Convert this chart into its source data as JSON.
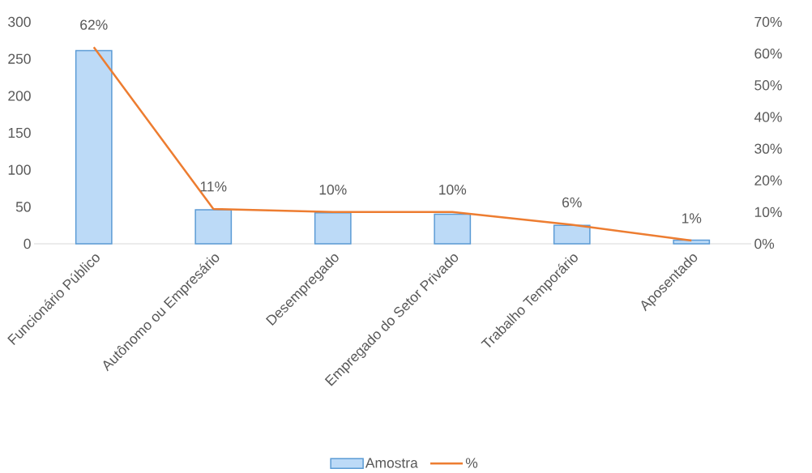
{
  "chart_data": {
    "type": "bar",
    "categories": [
      "Funcionário Público",
      "Autônomo ou Empresário",
      "Desempregado",
      "Empregado do Setor Privado",
      "Trabalho Temporário",
      "Aposentado"
    ],
    "series": [
      {
        "name": "Amostra",
        "color": "#bcdaf7",
        "values": [
          261,
          46,
          42,
          40,
          25,
          5
        ]
      },
      {
        "name": "%",
        "type": "line",
        "axis": "y2",
        "color": "#ed7d31",
        "values": [
          62,
          11,
          10,
          10,
          6,
          1
        ],
        "value_labels": [
          "62%",
          "11%",
          "10%",
          "10%",
          "6%",
          "1%"
        ]
      }
    ],
    "ylim": [
      0,
      300
    ],
    "yticks": [
      0,
      50,
      100,
      150,
      200,
      250,
      300
    ],
    "y2lim": [
      0,
      70
    ],
    "y2ticks": [
      {
        "value": 0,
        "label": "0%"
      },
      {
        "value": 10,
        "label": "10%"
      },
      {
        "value": 20,
        "label": "20%"
      },
      {
        "value": 30,
        "label": "30%"
      },
      {
        "value": 40,
        "label": "40%"
      },
      {
        "value": 50,
        "label": "50%"
      },
      {
        "value": 60,
        "label": "60%"
      },
      {
        "value": 70,
        "label": "70%"
      }
    ],
    "legend": "bottom"
  }
}
